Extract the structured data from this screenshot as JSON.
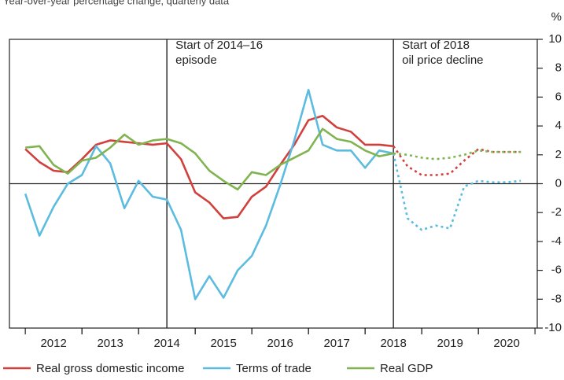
{
  "chart_data": {
    "type": "line",
    "subtitle": "Year-over-year percentage change, quarterly data",
    "y_unit": "%",
    "x": [
      2012,
      2012.25,
      2012.5,
      2012.75,
      2013,
      2013.25,
      2013.5,
      2013.75,
      2014,
      2014.25,
      2014.5,
      2014.75,
      2015,
      2015.25,
      2015.5,
      2015.75,
      2016,
      2016.25,
      2016.5,
      2016.75,
      2017,
      2017.25,
      2017.5,
      2017.75,
      2018,
      2018.25,
      2018.5,
      2018.75,
      2019,
      2019.25,
      2019.5,
      2019.75,
      2020,
      2020.25,
      2020.5,
      2020.75
    ],
    "series": [
      {
        "name": "Real gross domestic income",
        "color": "#d0413d",
        "values": [
          2.4,
          1.5,
          0.9,
          0.8,
          1.7,
          2.7,
          3.0,
          2.9,
          2.8,
          2.7,
          2.8,
          1.7,
          -0.6,
          -1.3,
          -2.4,
          -2.3,
          -0.9,
          -0.2,
          1.3,
          2.7,
          4.4,
          4.7,
          3.9,
          3.6,
          2.7,
          2.7,
          2.6,
          1.2,
          0.6,
          0.6,
          0.7,
          1.6,
          2.4,
          2.2,
          2.2,
          2.2
        ]
      },
      {
        "name": "Terms of trade",
        "color": "#5bbcdf",
        "values": [
          -0.7,
          -3.6,
          -1.6,
          0.0,
          0.6,
          2.6,
          1.4,
          -1.7,
          0.2,
          -0.9,
          -1.1,
          -3.2,
          -8.0,
          -6.4,
          -7.9,
          -6.0,
          -5.0,
          -2.9,
          -0.1,
          3.0,
          6.5,
          2.7,
          2.3,
          2.3,
          1.1,
          2.3,
          2.1,
          -2.4,
          -3.2,
          -2.9,
          -3.1,
          -0.2,
          0.2,
          0.1,
          0.1,
          0.2
        ]
      },
      {
        "name": "Real GDP",
        "color": "#80b450",
        "values": [
          2.5,
          2.6,
          1.3,
          0.7,
          1.6,
          1.8,
          2.5,
          3.4,
          2.7,
          3.0,
          3.1,
          2.8,
          2.1,
          0.9,
          0.2,
          -0.4,
          0.8,
          0.6,
          1.3,
          1.8,
          2.3,
          3.8,
          3.1,
          2.9,
          2.3,
          1.9,
          2.1,
          2.0,
          1.8,
          1.7,
          1.8,
          2.0,
          2.3,
          2.2,
          2.2,
          2.2
        ]
      }
    ],
    "projection_from": 2018.5,
    "annotations": [
      {
        "x": 2014.5,
        "lines": [
          "Start of 2014–16",
          "episode"
        ]
      },
      {
        "x": 2018.5,
        "lines": [
          "Start of 2018",
          "oil price decline"
        ]
      }
    ],
    "xlim": [
      2011.72,
      2021.04
    ],
    "xticks": [
      {
        "value": 2012.5,
        "label": "2012"
      },
      {
        "value": 2013.5,
        "label": "2013"
      },
      {
        "value": 2014.5,
        "label": "2014"
      },
      {
        "value": 2015.5,
        "label": "2015"
      },
      {
        "value": 2016.5,
        "label": "2016"
      },
      {
        "value": 2017.5,
        "label": "2017"
      },
      {
        "value": 2018.5,
        "label": "2018"
      },
      {
        "value": 2019.5,
        "label": "2019"
      },
      {
        "value": 2020.5,
        "label": "2020"
      }
    ],
    "ylim": [
      -10,
      10
    ],
    "yticks": [
      -10,
      -8,
      -6,
      -4,
      -2,
      0,
      2,
      4,
      6,
      8,
      10
    ]
  }
}
